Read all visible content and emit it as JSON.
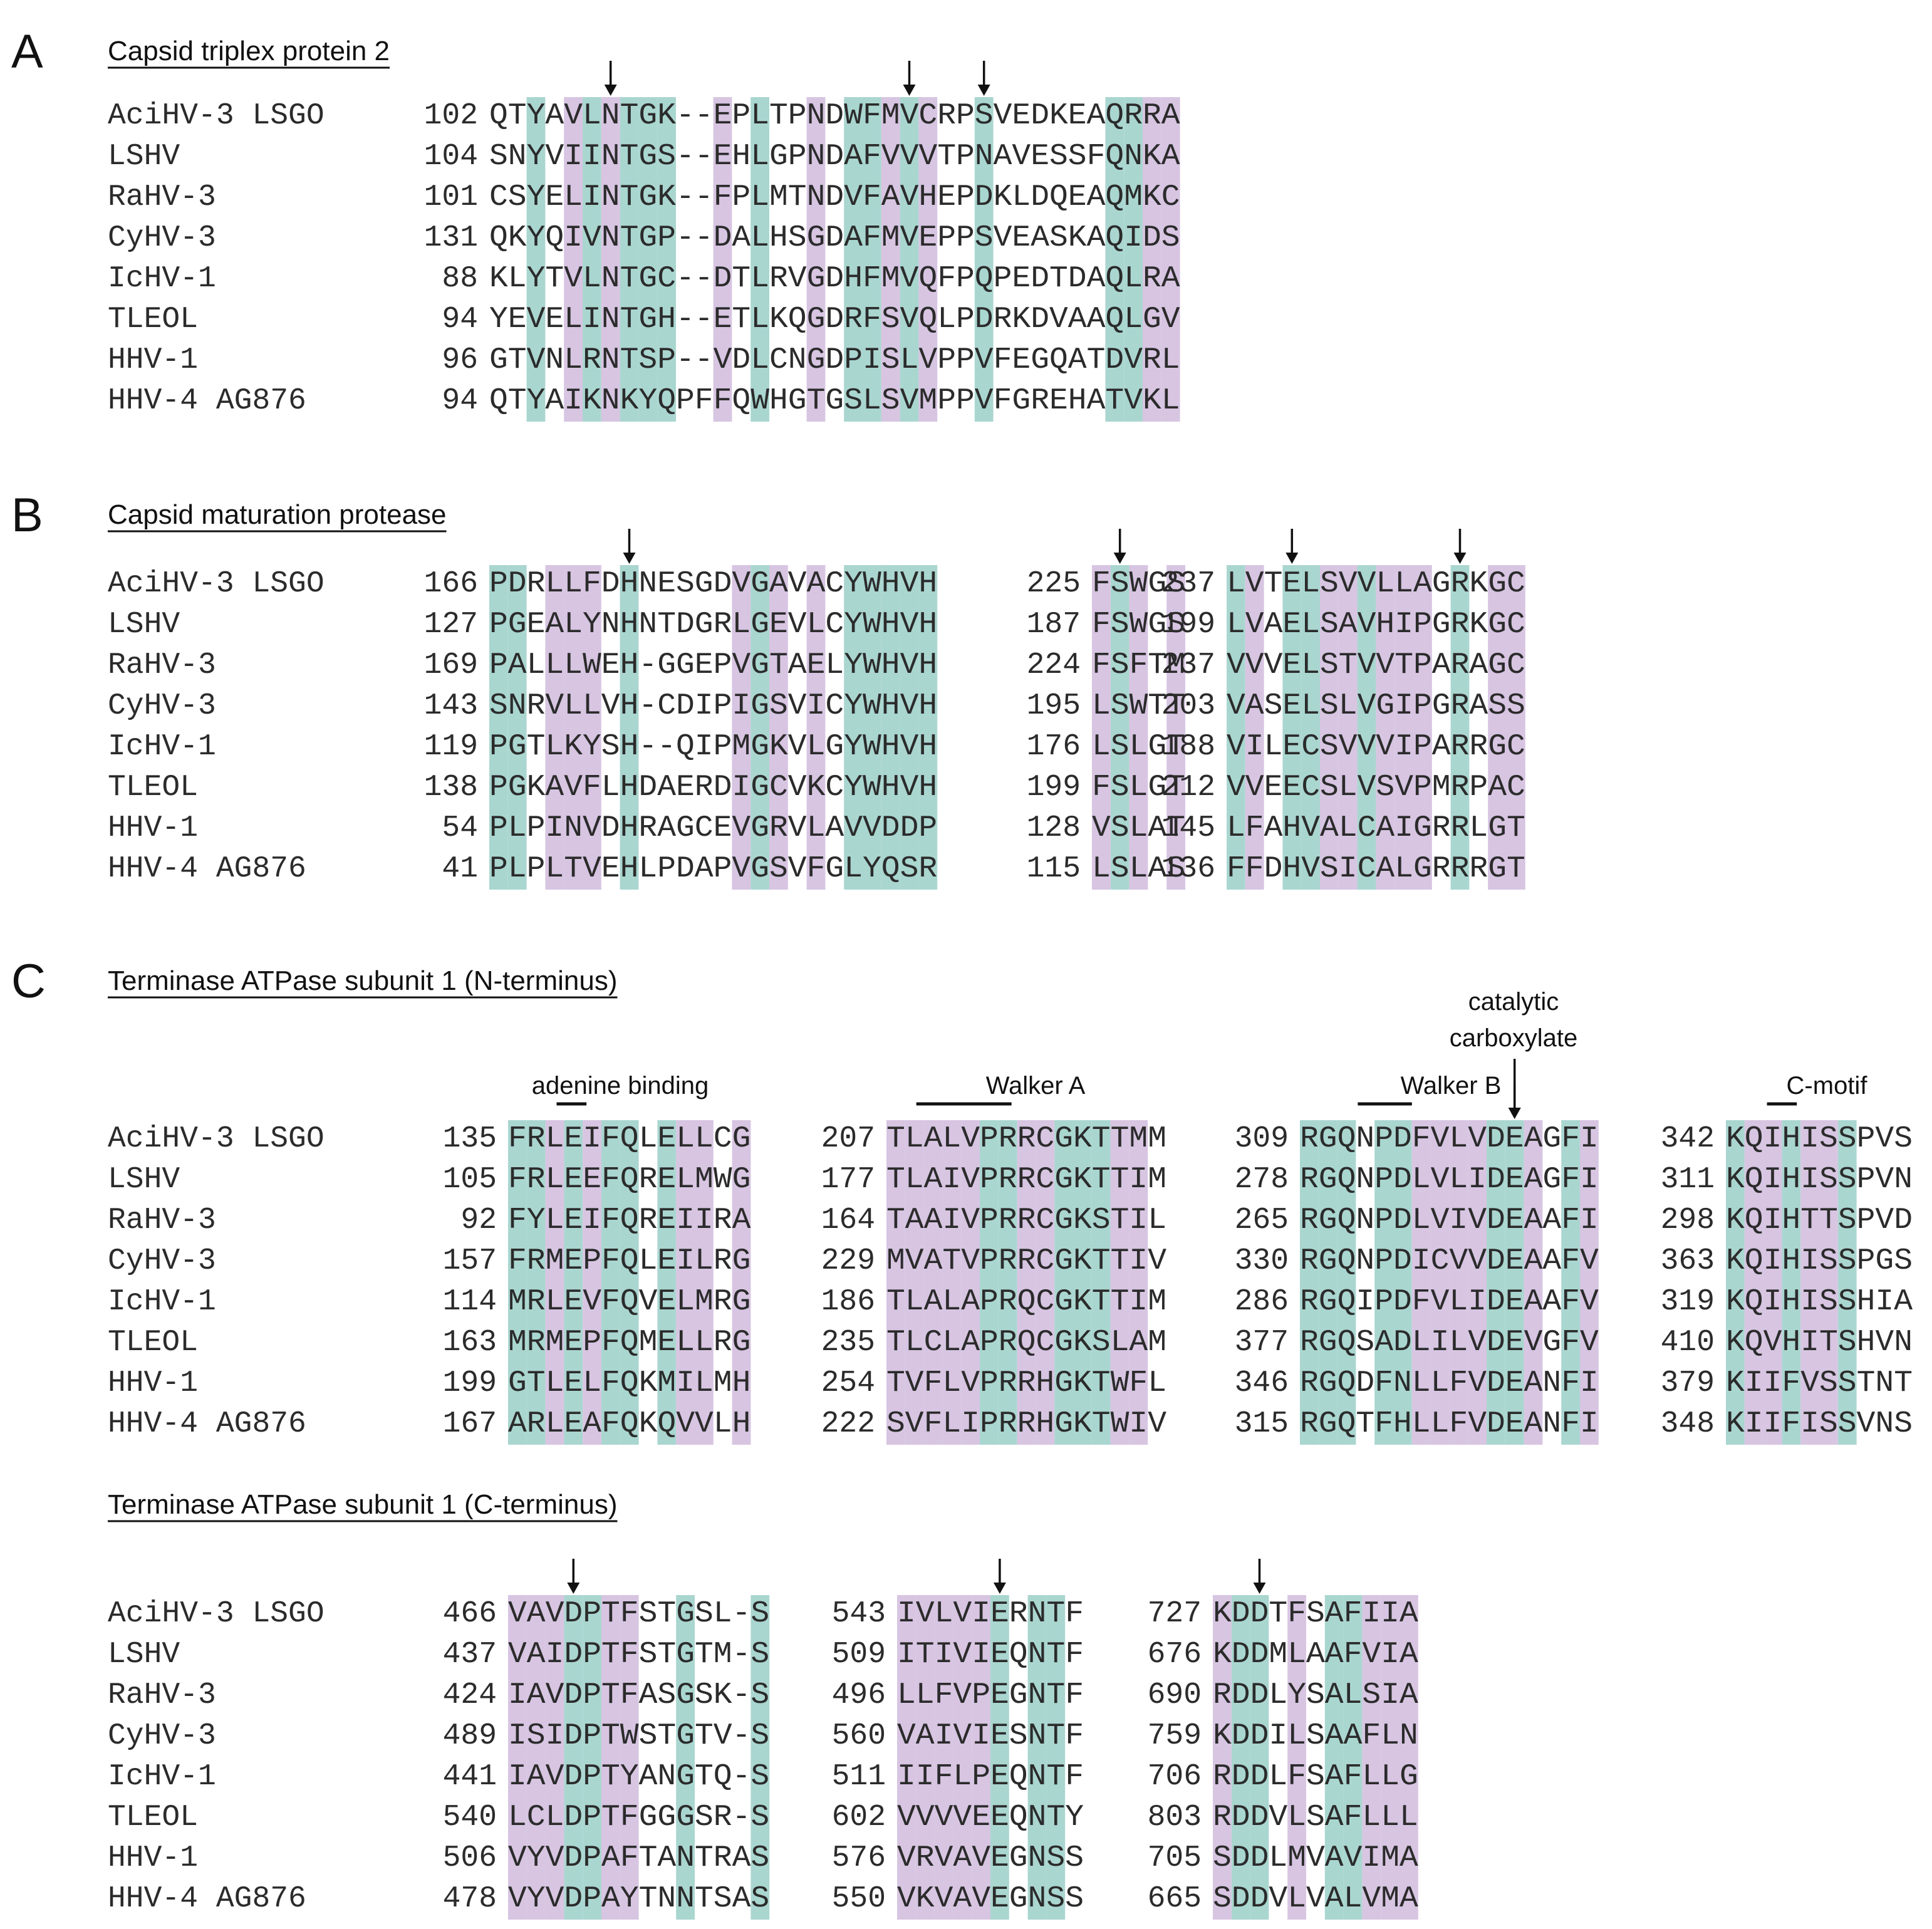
{
  "colors": {
    "teal": "#aad6d0",
    "purple": "#d7c5e2",
    "text": "#2b2b2b",
    "ink": "#111111"
  },
  "names": [
    "AciHV-3 LSGO",
    "LSHV",
    "RaHV-3",
    "CyHV-3",
    "IcHV-1",
    "TLEOL",
    "HHV-1",
    "HHV-4 AG876"
  ],
  "panels": [
    {
      "letter": "A",
      "title": "Capsid triplex protein 2",
      "blocks": [
        {
          "nums": [
            "102",
            "104",
            "101",
            "131",
            "88",
            "94",
            "96",
            "94"
          ],
          "seqs": [
            "QTYAVLNTGK--EPLTPNDWFMVCRPSVEDKEAQRRA",
            "SNYVIINTGS--EHLGPNDAFVVVTPNAVESSFQNKA",
            "CSYELINTGK--FPLMTNDVFAVHEPDKLDQEAQMKC",
            "QKYQIVNTGP--DALHSGDAFMVEPPSVEASKAQIDS",
            "KLYTVLNTGC--DTLRVGDHFMVQFPQPEDTDAQLRA",
            "YEVELINTGH--ETLKQGDRFSVQLPDRKDVAAQLGV",
            "GTVNLRNTSP--VDLCNGDPISLVPPVFEGQATDVRL",
            "QTYAIKNKYQPFFQWHGTGSLSVMPPVFGREHATVKL"
          ],
          "teal": [
            2,
            5,
            7,
            8,
            9,
            14,
            19,
            20,
            22,
            26,
            33,
            34
          ],
          "purple": [
            4,
            6,
            12,
            17,
            21,
            23,
            35,
            36
          ],
          "arrows": [
            6,
            22,
            26
          ]
        }
      ]
    },
    {
      "letter": "B",
      "title": "Capsid maturation protease",
      "blocks": [
        {
          "nums": [
            "166",
            "127",
            "169",
            "143",
            "119",
            "138",
            "54",
            "41"
          ],
          "seqs": [
            "PDRLLFDHNESGDVGAVACYWHVH",
            "PGEALYNHNTDGRLGEVLCYWHVH",
            "PALLLWEH-GGEPVGTAELYWHVH",
            "SNRVLLVH-CDIPIGSVICYWHVH",
            "PGTLKYSH--QIPMGKVLGYWHVH",
            "PGKAVFLHDAERDIGCVKCYWHVH",
            "PLPINVDHRAGCEVGRVLAVVDDP",
            "PLPLTVEHLPDAPVGSVFGLYQSR"
          ],
          "teal": [
            0,
            1,
            7,
            14,
            19,
            20,
            21,
            22,
            23
          ],
          "purple": [
            3,
            4,
            5,
            13,
            15,
            17
          ],
          "arrows": [
            7
          ]
        },
        {
          "nums": [
            "225",
            "187",
            "224",
            "195",
            "176",
            "199",
            "128",
            "115"
          ],
          "seqs": [
            "FSWGS",
            "FSWGS",
            "FSFTM",
            "LSWTT",
            "LSLGT",
            "FSLGT",
            "VSLAT",
            "LSLAS"
          ],
          "teal": [
            1
          ],
          "purple": [
            0,
            2,
            4
          ],
          "arrows": [
            1
          ]
        },
        {
          "nums": [
            "237",
            "199",
            "237",
            "203",
            "188",
            "212",
            "145",
            "136"
          ],
          "seqs": [
            "LVTELSVVLLAGRKGC",
            "LVAELSAVHIPGRKGC",
            "VVVELSTVVTPARAGC",
            "VASELSLVGIPGRASS",
            "VILECSVVVIPARRGC",
            "VVEECSLVSVPMRPAC",
            "LFAHVALCAIGRRLGT",
            "FFDHVSICALGRRRGT"
          ],
          "teal": [
            0,
            3,
            4,
            7,
            12
          ],
          "purple": [
            1,
            5,
            6,
            8,
            9,
            10,
            14,
            15
          ],
          "arrows": [
            3,
            12
          ]
        }
      ]
    },
    {
      "letter": "C",
      "title": "Terminase ATPase subunit 1 (N-terminus)",
      "blocks": [
        {
          "nums": [
            "135",
            "105",
            "92",
            "157",
            "114",
            "163",
            "199",
            "167"
          ],
          "seqs": [
            "FRLEIFQLELLCG",
            "FRLEEFQRELMWG",
            "FYLEIFQREIIRA",
            "FRMEPFQLEILRG",
            "MRLEVFQVELMRG",
            "MRMEPFQMELLRG",
            "GTLELFQKMILMH",
            "ARLEAFQKQVVLH"
          ],
          "teal": [
            0,
            1,
            3,
            5,
            6,
            8
          ],
          "purple": [
            2,
            4,
            9,
            10,
            12
          ],
          "arrows": []
        },
        {
          "nums": [
            "207",
            "177",
            "164",
            "229",
            "186",
            "235",
            "254",
            "222"
          ],
          "seqs": [
            "TLALVPRRCGKTTMM",
            "TLAIVPRRCGKTTIM",
            "TAAIVPRRCGKSTIL",
            "MVATVPRRCGKTTIV",
            "TLALAPRQCGKTTIM",
            "TLCLAPRQCGKSLAM",
            "TVFLVPRRHGKTWFL",
            "SVFLIPRRHGKTWIV"
          ],
          "teal": [
            5,
            6,
            9,
            10,
            11
          ],
          "purple": [
            0,
            1,
            2,
            3,
            4,
            7,
            8,
            12,
            13
          ],
          "arrows": []
        },
        {
          "nums": [
            "309",
            "278",
            "265",
            "330",
            "286",
            "377",
            "346",
            "315"
          ],
          "seqs": [
            "RGQNPDFVLVDEAGFI",
            "RGQNPDLVLIDEAGFI",
            "RGQNPDLVIVDEAAFI",
            "RGQNPDICVVDEAAFV",
            "RGQIPDFVLIDEAAFV",
            "RGQSADLILVDEVGFV",
            "RGQDFNLLFVDEANFI",
            "RGQTFHLLFVDEANFI"
          ],
          "teal": [
            0,
            1,
            2,
            4,
            5,
            10,
            11,
            14
          ],
          "purple": [
            6,
            7,
            8,
            9,
            12,
            15
          ],
          "arrows": [
            11
          ]
        },
        {
          "nums": [
            "342",
            "311",
            "298",
            "363",
            "319",
            "410",
            "379",
            "348"
          ],
          "seqs": [
            "KQIHISSPVS",
            "KQIHISSPVN",
            "KQIHTTSPVD",
            "KQIHISSPGS",
            "KQIHISSHIA",
            "KQVHITSHVN",
            "KIIFVSSTNT",
            "KIIFISSVNS"
          ],
          "teal": [
            0,
            3,
            6
          ],
          "purple": [
            1,
            2,
            4,
            5
          ],
          "arrows": []
        }
      ],
      "labels": {
        "adenine": "adenine binding",
        "walker_a": "Walker A",
        "walker_b": "Walker B",
        "catalytic_1": "catalytic",
        "catalytic_2": "carboxylate",
        "c_motif": "C-motif"
      }
    },
    {
      "letter": "",
      "title": "Terminase ATPase subunit 1 (C-terminus)",
      "blocks": [
        {
          "nums": [
            "466",
            "437",
            "424",
            "489",
            "441",
            "540",
            "506",
            "478"
          ],
          "seqs": [
            "VAVDPTFSTGSL-S",
            "VAIDPTFSTGTM-S",
            "IAVDPTFASGSK-S",
            "ISIDPTWSTGTV-S",
            "IAVDPTYANGTQ-S",
            "LCLDPTFGGGSR-S",
            "VYVDPAFTANTRAS",
            "VYVDPAYTNNTSAS"
          ],
          "teal": [
            3,
            4,
            9,
            13
          ],
          "purple": [
            0,
            1,
            2,
            5,
            6
          ],
          "arrows": [
            3
          ]
        },
        {
          "nums": [
            "543",
            "509",
            "496",
            "560",
            "511",
            "602",
            "576",
            "550"
          ],
          "seqs": [
            "IVLVIERNTF",
            "ITIVIEQNTF",
            "LLFVPEGNTF",
            "VAIVIESNTF",
            "IIFLPEQNTF",
            "VVVVEEQNTY",
            "VRVAVEGNSS",
            "VKVAVEGNSS"
          ],
          "teal": [
            5,
            7,
            8
          ],
          "purple": [
            0,
            1,
            2,
            3,
            4
          ],
          "arrows": [
            5
          ]
        },
        {
          "nums": [
            "727",
            "676",
            "690",
            "759",
            "706",
            "803",
            "705",
            "665"
          ],
          "seqs": [
            "KDDTFSAFIIA",
            "KDDMLAAFVIA",
            "RDDLYSALSIA",
            "KDDILSAAFLN",
            "RDDLFSAFLLG",
            "RDDVLSAFLLL",
            "SDDLMVAVIMA",
            "SDDVLVALVMA"
          ],
          "teal": [
            1,
            2,
            6,
            7
          ],
          "purple": [
            0,
            4,
            8,
            9,
            10
          ],
          "arrows": [
            2
          ]
        }
      ]
    }
  ]
}
